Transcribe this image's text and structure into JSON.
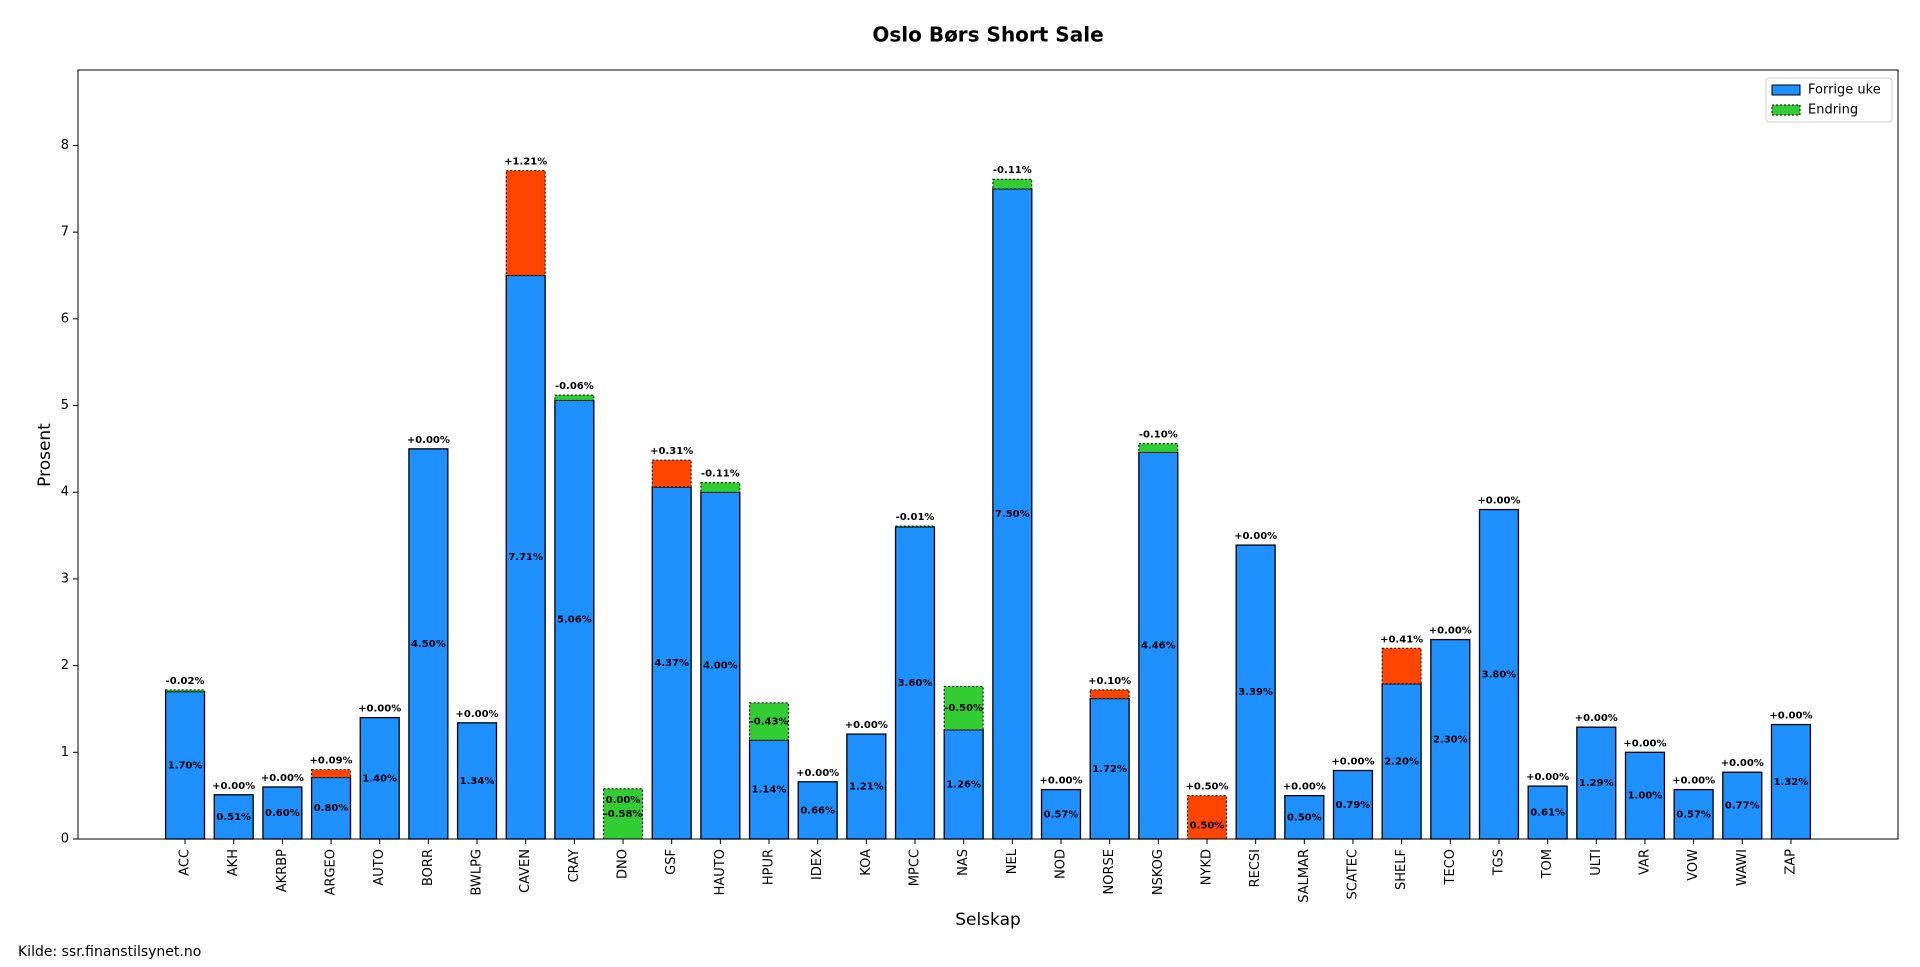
{
  "chart_data": {
    "type": "bar",
    "title": "Oslo Børs Short Sale",
    "x_label": "Selskap",
    "y_label": "Prosent",
    "source": "Kilde: ssr.finanstilsynet.no",
    "categories": [
      "ACC",
      "AKH",
      "AKRBP",
      "ARGEO",
      "AUTO",
      "BORR",
      "BWLPG",
      "CAVEN",
      "CRAY",
      "DNO",
      "GSF",
      "HAUTO",
      "HPUR",
      "IDEX",
      "KOA",
      "MPCC",
      "NAS",
      "NEL",
      "NOD",
      "NORSE",
      "NSKOG",
      "NYKD",
      "RECSI",
      "SALMAR",
      "SCATEC",
      "SHELF",
      "TECO",
      "TGS",
      "TOM",
      "ULTI",
      "VAR",
      "VOW",
      "WAWI",
      "ZAP"
    ],
    "series": [
      {
        "name": "Forrige uke",
        "color": "#1e90ff",
        "values": [
          1.7,
          0.51,
          0.6,
          0.71,
          1.4,
          4.5,
          1.34,
          6.5,
          5.06,
          0,
          4.06,
          4.0,
          1.14,
          0.66,
          1.21,
          3.6,
          1.26,
          7.5,
          0.57,
          1.62,
          4.46,
          0,
          3.39,
          0.5,
          0.79,
          1.79,
          2.3,
          3.8,
          0.61,
          1.29,
          1.0,
          0.57,
          0.77,
          1.32
        ]
      },
      {
        "name": "Endring",
        "color": "#32cd32",
        "increase_color": "#ff4500",
        "values": [
          -0.02,
          0,
          0,
          0.09,
          0,
          0,
          0,
          1.21,
          -0.06,
          -0.58,
          0.31,
          -0.11,
          -0.43,
          0,
          0,
          -0.01,
          -0.5,
          -0.11,
          0,
          0.1,
          -0.1,
          0.5,
          0,
          0,
          0,
          0.41,
          0,
          0,
          0,
          0,
          0,
          0,
          0,
          0
        ],
        "value_labels": [
          "-0.02%",
          "+0.00%",
          "+0.00%",
          "+0.09%",
          "+0.00%",
          "+0.00%",
          "+0.00%",
          "+1.21%",
          "-0.06%",
          "-0.58%",
          "+0.31%",
          "-0.11%",
          "-0.43%",
          "+0.00%",
          "+0.00%",
          "-0.01%",
          "-0.50%",
          "-0.11%",
          "+0.00%",
          "+0.10%",
          "-0.10%",
          "+0.50%",
          "+0.00%",
          "+0.00%",
          "+0.00%",
          "+0.41%",
          "+0.00%",
          "+0.00%",
          "+0.00%",
          "+0.00%",
          "+0.00%",
          "+0.00%",
          "+0.00%",
          "+0.00%"
        ]
      }
    ],
    "current": {
      "values": [
        1.7,
        0.51,
        0.6,
        0.8,
        1.4,
        4.5,
        1.34,
        7.71,
        5.06,
        0,
        4.37,
        4.0,
        1.14,
        0.66,
        1.21,
        3.6,
        1.26,
        7.5,
        0.57,
        1.72,
        4.46,
        0.5,
        3.39,
        0.5,
        0.79,
        2.2,
        2.3,
        3.8,
        0.61,
        1.29,
        1.0,
        0.57,
        0.77,
        1.32
      ],
      "value_labels": [
        "1.70%",
        "0.51%",
        "0.60%",
        "0.80%",
        "1.40%",
        "4.50%",
        "1.34%",
        "7.71%",
        "5.06%",
        "0.00%",
        "4.37%",
        "4.00%",
        "1.14%",
        "0.66%",
        "1.21%",
        "3.60%",
        "1.26%",
        "7.50%",
        "0.57%",
        "1.72%",
        "4.46%",
        "0.50%",
        "3.39%",
        "0.50%",
        "0.79%",
        "2.20%",
        "2.30%",
        "3.80%",
        "0.61%",
        "1.29%",
        "1.00%",
        "0.57%",
        "0.77%",
        "1.32%"
      ]
    },
    "ylim": [
      0,
      8.87
    ],
    "yticks": [
      0,
      1,
      2,
      3,
      4,
      5,
      6,
      7,
      8
    ],
    "legend": "upper right"
  }
}
